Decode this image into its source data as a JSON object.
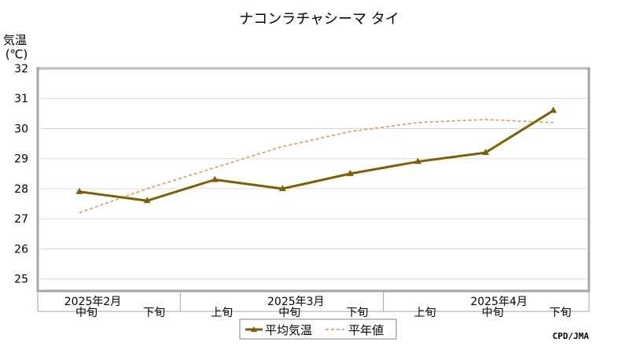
{
  "chart_data": {
    "type": "line",
    "title": "ナコンラチャシーマ タイ",
    "ylabel_line1": "気温",
    "ylabel_line2": "(℃)",
    "ylim": [
      24.6,
      32
    ],
    "yticks": [
      25,
      26,
      27,
      28,
      29,
      30,
      31,
      32
    ],
    "categories": [
      "中旬",
      "下旬",
      "上旬",
      "中旬",
      "下旬",
      "上旬",
      "中旬",
      "下旬"
    ],
    "month_labels": [
      {
        "label": "2025年2月",
        "category_index": 0
      },
      {
        "label": "2025年3月",
        "category_index": 3
      },
      {
        "label": "2025年4月",
        "category_index": 6
      }
    ],
    "series": [
      {
        "name": "平均気温",
        "values": [
          27.9,
          27.6,
          28.3,
          28.0,
          28.5,
          28.9,
          29.2,
          30.6
        ],
        "color": "#7f6000",
        "style": "solid",
        "marker": "triangle"
      },
      {
        "name": "平年値",
        "values": [
          27.2,
          28.0,
          28.7,
          29.4,
          29.9,
          30.2,
          30.3,
          30.2
        ],
        "color": "#e6923a",
        "style": "dashed"
      }
    ],
    "grid": true,
    "legend": "bottom-center",
    "credit": "CPD/JMA"
  }
}
